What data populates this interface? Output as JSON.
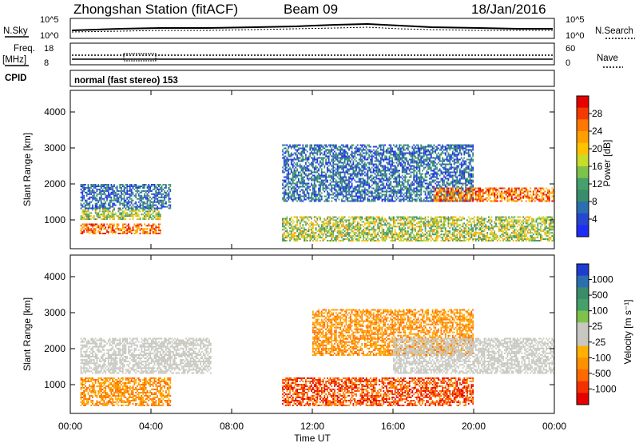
{
  "header": {
    "title": "Zhongshan Station (fitACF)",
    "beam": "Beam 09",
    "date": "18/Jan/2016"
  },
  "panels": {
    "nsky_label": "N.Sky",
    "nsky_ticks": [
      "10^5",
      "10^0"
    ],
    "nsearch_label": "N.Search",
    "nsearch_ticks": [
      "10^5",
      "10^0"
    ],
    "freq_label": "Freq.",
    "freq_unit": "[MHz]",
    "freq_ticks": [
      "18",
      "8"
    ],
    "nave_label": "Nave",
    "nave_ticks": [
      "60",
      "0"
    ],
    "cpid_label": "CPID",
    "cpid_value": "normal (fast stereo) 153"
  },
  "chart_data": [
    {
      "type": "heatmap",
      "title": "",
      "xlabel": "Time UT",
      "ylabel": "Slant Range [km]",
      "xticks": [
        "00:00",
        "04:00",
        "08:00",
        "12:00",
        "16:00",
        "20:00",
        "00:00"
      ],
      "yticks": [
        "1000",
        "2000",
        "3000",
        "4000"
      ],
      "ylim": [
        200,
        4600
      ],
      "xlim_hours": [
        0,
        24
      ],
      "colorbar": {
        "label": "Power [dB]",
        "ticks": [
          "28",
          "24",
          "20",
          "16",
          "12",
          "8",
          "4"
        ],
        "colors": [
          "#e60000",
          "#f53a00",
          "#ff7800",
          "#ff9f00",
          "#ffc200",
          "#c8dc2a",
          "#7fc24a",
          "#45a06a",
          "#3b8c6a",
          "#2c6fb0",
          "#2746d0",
          "#1f2cf5"
        ]
      },
      "regions": [
        {
          "x": [
            0.5,
            4.5
          ],
          "y": [
            600,
            900
          ],
          "level": "high"
        },
        {
          "x": [
            0.5,
            4.5
          ],
          "y": [
            1000,
            1300
          ],
          "level": "mid"
        },
        {
          "x": [
            0.5,
            5.0
          ],
          "y": [
            1300,
            2000
          ],
          "level": "low"
        },
        {
          "x": [
            10.5,
            24
          ],
          "y": [
            400,
            1100
          ],
          "level": "mid"
        },
        {
          "x": [
            10.5,
            20
          ],
          "y": [
            1500,
            3100
          ],
          "level": "low"
        },
        {
          "x": [
            18,
            24
          ],
          "y": [
            1500,
            1900
          ],
          "level": "high"
        }
      ]
    },
    {
      "type": "heatmap",
      "title": "",
      "xlabel": "Time UT",
      "ylabel": "Slant Range [km]",
      "xticks": [
        "00:00",
        "04:00",
        "08:00",
        "12:00",
        "16:00",
        "20:00",
        "00:00"
      ],
      "yticks": [
        "1000",
        "2000",
        "3000",
        "4000"
      ],
      "ylim": [
        200,
        4600
      ],
      "xlim_hours": [
        0,
        24
      ],
      "colorbar": {
        "label": "Velocity [m s⁻¹]",
        "ticks": [
          "1000",
          "500",
          "100",
          "25",
          "-25",
          "-100",
          "-500",
          "-1000"
        ],
        "colors": [
          "#1f3cd0",
          "#2c6fb0",
          "#3b8c6a",
          "#45a06a",
          "#7fc24a",
          "#c8c8c0",
          "#c8c8c0",
          "#ffb000",
          "#ff9000",
          "#ff6a00",
          "#f53000",
          "#e60000"
        ]
      },
      "regions": [
        {
          "x": [
            0.5,
            5.0
          ],
          "y": [
            400,
            1200
          ],
          "level": "negative"
        },
        {
          "x": [
            0.5,
            7.0
          ],
          "y": [
            1300,
            2300
          ],
          "level": "near-zero"
        },
        {
          "x": [
            10.5,
            20
          ],
          "y": [
            400,
            1200
          ],
          "level": "strong-negative"
        },
        {
          "x": [
            12,
            20
          ],
          "y": [
            1800,
            3100
          ],
          "level": "negative"
        },
        {
          "x": [
            16,
            24
          ],
          "y": [
            1300,
            2300
          ],
          "level": "near-zero"
        }
      ]
    }
  ]
}
